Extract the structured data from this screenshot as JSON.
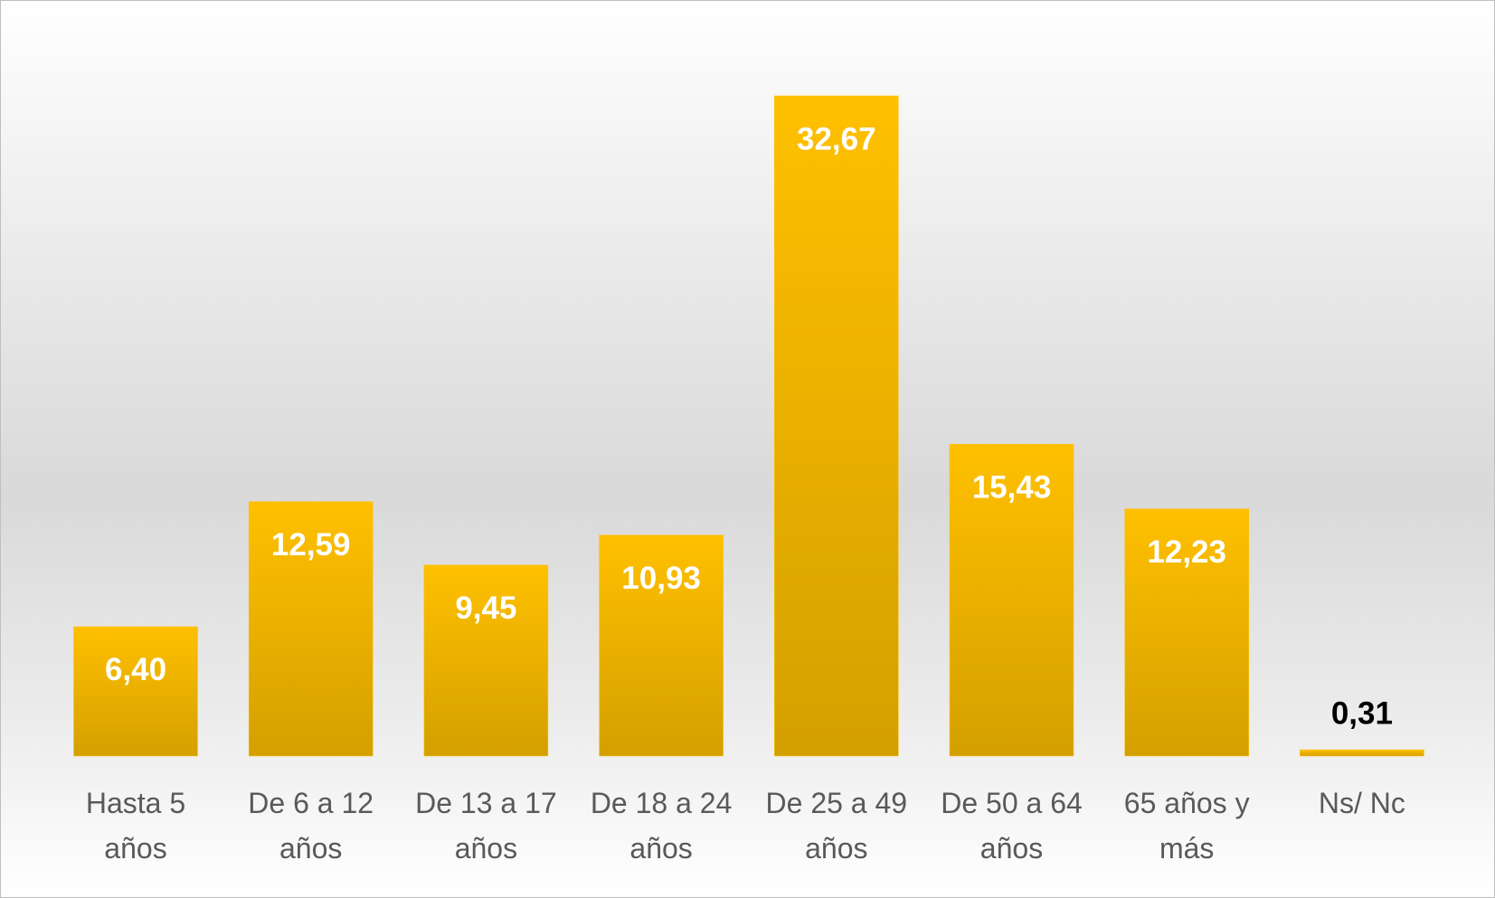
{
  "chart_data": {
    "type": "bar",
    "categories": [
      "Hasta 5 años",
      "De 6 a 12 años",
      "De 13 a 17 años",
      "De 18 a 24 años",
      "De 25 a 49 años",
      "De 50 a 64 años",
      "65 años y más",
      "Ns/ Nc"
    ],
    "values": [
      6.4,
      12.59,
      9.45,
      10.93,
      32.67,
      15.43,
      12.23,
      0.31
    ],
    "value_labels": [
      "6,40",
      "12,59",
      "9,45",
      "10,93",
      "32,67",
      "15,43",
      "12,23",
      "0,31"
    ],
    "color": "#ffc000"
  }
}
